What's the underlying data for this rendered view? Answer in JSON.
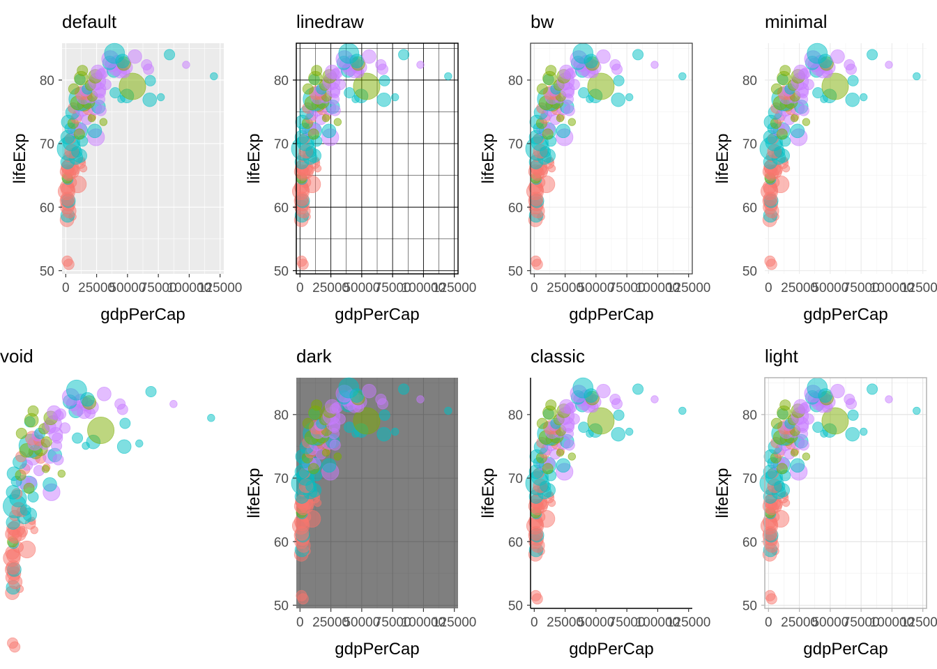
{
  "chart_data": {
    "type": "scatter",
    "layout": "2x4 grid of the same bubble scatter plot rendered with different ggplot2 themes",
    "xlabel": "gdpPerCap",
    "ylabel": "lifeExp",
    "xlim": [
      -3000,
      128000
    ],
    "ylim": [
      49.5,
      85.8
    ],
    "x_ticks": [
      0,
      25000,
      50000,
      75000,
      100000,
      125000
    ],
    "x_tick_labels": [
      "0",
      "25000",
      "50000",
      "75000",
      "100000",
      "125000"
    ],
    "y_ticks": [
      50,
      60,
      70,
      80
    ],
    "y_tick_labels": [
      "50",
      "60",
      "70",
      "80"
    ],
    "legend": "none",
    "alpha": 0.5,
    "group_colors": {
      "g1": "#F8766D",
      "g2": "#7CAE00",
      "g3": "#00BFC4",
      "g4": "#C77CFF"
    },
    "panels": [
      {
        "title": "default",
        "theme": "gray"
      },
      {
        "title": "linedraw",
        "theme": "linedraw"
      },
      {
        "title": "bw",
        "theme": "bw"
      },
      {
        "title": "minimal",
        "theme": "minimal"
      },
      {
        "title": "void",
        "theme": "void"
      },
      {
        "title": "dark",
        "theme": "dark"
      },
      {
        "title": "classic",
        "theme": "classic"
      },
      {
        "title": "light",
        "theme": "light"
      }
    ],
    "points": [
      {
        "x": 1200,
        "y": 51.5,
        "s": 2,
        "g": "g1"
      },
      {
        "x": 2500,
        "y": 51.0,
        "s": 2,
        "g": "g1"
      },
      {
        "x": 1000,
        "y": 58.0,
        "s": 3,
        "g": "g1"
      },
      {
        "x": 5500,
        "y": 58.5,
        "s": 1,
        "g": "g1"
      },
      {
        "x": 1500,
        "y": 58.7,
        "s": 3,
        "g": "g3"
      },
      {
        "x": 2800,
        "y": 59.4,
        "s": 3,
        "g": "g1"
      },
      {
        "x": 1200,
        "y": 60.0,
        "s": 3,
        "g": "g1"
      },
      {
        "x": 2000,
        "y": 60.5,
        "s": 3,
        "g": "g1"
      },
      {
        "x": 900,
        "y": 61.0,
        "s": 3,
        "g": "g1"
      },
      {
        "x": 2200,
        "y": 61.0,
        "s": 3,
        "g": "g3"
      },
      {
        "x": 1500,
        "y": 61.3,
        "s": 3,
        "g": "g1"
      },
      {
        "x": 700,
        "y": 62.5,
        "s": 4,
        "g": "g1"
      },
      {
        "x": 1800,
        "y": 62.8,
        "s": 3,
        "g": "g1"
      },
      {
        "x": 1100,
        "y": 63.2,
        "s": 3,
        "g": "g1"
      },
      {
        "x": 9800,
        "y": 63.6,
        "s": 4,
        "g": "g1"
      },
      {
        "x": 4500,
        "y": 63.9,
        "s": 2,
        "g": "g1"
      },
      {
        "x": 1700,
        "y": 64.4,
        "s": 2,
        "g": "g3"
      },
      {
        "x": 1200,
        "y": 64.6,
        "s": 2,
        "g": "g2"
      },
      {
        "x": 2500,
        "y": 65.3,
        "s": 3,
        "g": "g1"
      },
      {
        "x": 1000,
        "y": 65.6,
        "s": 3,
        "g": "g1"
      },
      {
        "x": 5200,
        "y": 65.6,
        "s": 3,
        "g": "g1"
      },
      {
        "x": 7000,
        "y": 65.9,
        "s": 2,
        "g": "g1"
      },
      {
        "x": 3500,
        "y": 66.3,
        "s": 4,
        "g": "g1"
      },
      {
        "x": 1800,
        "y": 66.3,
        "s": 3,
        "g": "g1"
      },
      {
        "x": 14200,
        "y": 66.1,
        "s": 1,
        "g": "g1"
      },
      {
        "x": 11800,
        "y": 66.9,
        "s": 2,
        "g": "g1"
      },
      {
        "x": 12800,
        "y": 67.3,
        "s": 1,
        "g": "g1"
      },
      {
        "x": 1500,
        "y": 67.1,
        "s": 3,
        "g": "g3"
      },
      {
        "x": 2500,
        "y": 68.0,
        "s": 2,
        "g": "g1"
      },
      {
        "x": 8200,
        "y": 67.8,
        "s": 3,
        "g": "g3"
      },
      {
        "x": 11500,
        "y": 68.1,
        "s": 3,
        "g": "g3"
      },
      {
        "x": 6800,
        "y": 68.5,
        "s": 2,
        "g": "g1"
      },
      {
        "x": 2500,
        "y": 69.2,
        "s": 6,
        "g": "g3"
      },
      {
        "x": 4800,
        "y": 68.8,
        "s": 3,
        "g": "g1"
      },
      {
        "x": 9000,
        "y": 68.7,
        "s": 2,
        "g": "g3"
      },
      {
        "x": 4500,
        "y": 70.2,
        "s": 4,
        "g": "g3"
      },
      {
        "x": 13500,
        "y": 70.4,
        "s": 2,
        "g": "g3"
      },
      {
        "x": 3800,
        "y": 70.8,
        "s": 2,
        "g": "g1"
      },
      {
        "x": 1500,
        "y": 71.0,
        "s": 3,
        "g": "g3"
      },
      {
        "x": 24500,
        "y": 71.0,
        "s": 4,
        "g": "g4"
      },
      {
        "x": 23500,
        "y": 72.0,
        "s": 3,
        "g": "g3"
      },
      {
        "x": 10800,
        "y": 72.0,
        "s": 4,
        "g": "g3"
      },
      {
        "x": 7500,
        "y": 72.3,
        "s": 3,
        "g": "g4"
      },
      {
        "x": 12500,
        "y": 72.3,
        "s": 2,
        "g": "g4"
      },
      {
        "x": 11000,
        "y": 71.5,
        "s": 2,
        "g": "g2"
      },
      {
        "x": 3500,
        "y": 72.4,
        "s": 2,
        "g": "g3"
      },
      {
        "x": 2000,
        "y": 73.4,
        "s": 3,
        "g": "g3"
      },
      {
        "x": 6000,
        "y": 73.2,
        "s": 2,
        "g": "g2"
      },
      {
        "x": 30500,
        "y": 73.4,
        "s": 1,
        "g": "g2"
      },
      {
        "x": 17000,
        "y": 73.8,
        "s": 2,
        "g": "g4"
      },
      {
        "x": 8500,
        "y": 74.0,
        "s": 2,
        "g": "g1"
      },
      {
        "x": 21500,
        "y": 74.2,
        "s": 1,
        "g": "g1"
      },
      {
        "x": 21000,
        "y": 74.0,
        "s": 1,
        "g": "g2"
      },
      {
        "x": 10000,
        "y": 74.5,
        "s": 2,
        "g": "g4"
      },
      {
        "x": 5500,
        "y": 74.9,
        "s": 3,
        "g": "g3"
      },
      {
        "x": 6200,
        "y": 75.6,
        "s": 2,
        "g": "g1"
      },
      {
        "x": 13500,
        "y": 75.4,
        "s": 3,
        "g": "g4"
      },
      {
        "x": 18000,
        "y": 75.4,
        "s": 2,
        "g": "g1"
      },
      {
        "x": 23500,
        "y": 75.6,
        "s": 3,
        "g": "g4"
      },
      {
        "x": 26500,
        "y": 75.8,
        "s": 3,
        "g": "g3"
      },
      {
        "x": 28500,
        "y": 75.2,
        "s": 2,
        "g": "g4"
      },
      {
        "x": 15000,
        "y": 76.2,
        "s": 3,
        "g": "g2"
      },
      {
        "x": 12000,
        "y": 77.0,
        "s": 6,
        "g": "g3"
      },
      {
        "x": 18000,
        "y": 76.6,
        "s": 3,
        "g": "g2"
      },
      {
        "x": 9500,
        "y": 76.4,
        "s": 3,
        "g": "g2"
      },
      {
        "x": 20500,
        "y": 77.2,
        "s": 2,
        "g": "g4"
      },
      {
        "x": 14500,
        "y": 77.3,
        "s": 3,
        "g": "g4"
      },
      {
        "x": 27500,
        "y": 77.0,
        "s": 2,
        "g": "g4"
      },
      {
        "x": 17000,
        "y": 77.7,
        "s": 2,
        "g": "g1"
      },
      {
        "x": 21500,
        "y": 77.5,
        "s": 2,
        "g": "g2"
      },
      {
        "x": 28000,
        "y": 78.0,
        "s": 2,
        "g": "g4"
      },
      {
        "x": 13000,
        "y": 78.0,
        "s": 3,
        "g": "g1"
      },
      {
        "x": 16000,
        "y": 78.3,
        "s": 2,
        "g": "g4"
      },
      {
        "x": 40000,
        "y": 78.0,
        "s": 2,
        "g": "g3"
      },
      {
        "x": 6500,
        "y": 78.6,
        "s": 2,
        "g": "g2"
      },
      {
        "x": 17500,
        "y": 78.6,
        "s": 2,
        "g": "g3"
      },
      {
        "x": 27000,
        "y": 78.5,
        "s": 3,
        "g": "g4"
      },
      {
        "x": 45000,
        "y": 77.0,
        "s": 1,
        "g": "g3"
      },
      {
        "x": 49500,
        "y": 77.5,
        "s": 3,
        "g": "g3"
      },
      {
        "x": 68000,
        "y": 76.9,
        "s": 3,
        "g": "g3"
      },
      {
        "x": 77000,
        "y": 77.3,
        "s": 1,
        "g": "g3"
      },
      {
        "x": 54000,
        "y": 79.0,
        "s": 7,
        "g": "g2"
      },
      {
        "x": 23000,
        "y": 79.4,
        "s": 3,
        "g": "g4"
      },
      {
        "x": 32500,
        "y": 79.3,
        "s": 2,
        "g": "g4"
      },
      {
        "x": 20000,
        "y": 79.2,
        "s": 2,
        "g": "g2"
      },
      {
        "x": 25500,
        "y": 79.8,
        "s": 4,
        "g": "g4"
      },
      {
        "x": 68500,
        "y": 79.9,
        "s": 2,
        "g": "g3"
      },
      {
        "x": 11500,
        "y": 80.1,
        "s": 2,
        "g": "g3"
      },
      {
        "x": 12500,
        "y": 80.3,
        "s": 3,
        "g": "g2"
      },
      {
        "x": 24000,
        "y": 80.6,
        "s": 3,
        "g": "g2"
      },
      {
        "x": 120000,
        "y": 80.6,
        "s": 1,
        "g": "g3"
      },
      {
        "x": 28500,
        "y": 80.9,
        "s": 2,
        "g": "g4"
      },
      {
        "x": 30000,
        "y": 81.1,
        "s": 2,
        "g": "g4"
      },
      {
        "x": 26000,
        "y": 81.3,
        "s": 3,
        "g": "g4"
      },
      {
        "x": 39000,
        "y": 81.5,
        "s": 3,
        "g": "g3"
      },
      {
        "x": 44000,
        "y": 81.4,
        "s": 3,
        "g": "g4"
      },
      {
        "x": 47500,
        "y": 81.2,
        "s": 2,
        "g": "g4"
      },
      {
        "x": 13500,
        "y": 81.5,
        "s": 2,
        "g": "g2"
      },
      {
        "x": 40500,
        "y": 81.8,
        "s": 3,
        "g": "g4"
      },
      {
        "x": 48500,
        "y": 82.0,
        "s": 3,
        "g": "g4"
      },
      {
        "x": 37500,
        "y": 82.4,
        "s": 3,
        "g": "g4"
      },
      {
        "x": 45000,
        "y": 82.4,
        "s": 3,
        "g": "g4"
      },
      {
        "x": 67000,
        "y": 81.7,
        "s": 2,
        "g": "g4"
      },
      {
        "x": 65500,
        "y": 82.4,
        "s": 2,
        "g": "g4"
      },
      {
        "x": 97500,
        "y": 82.4,
        "s": 1,
        "g": "g4"
      },
      {
        "x": 42000,
        "y": 82.8,
        "s": 3,
        "g": "g4"
      },
      {
        "x": 47000,
        "y": 82.6,
        "s": 3,
        "g": "g2"
      },
      {
        "x": 35500,
        "y": 82.7,
        "s": 3,
        "g": "g3"
      },
      {
        "x": 36000,
        "y": 83.3,
        "s": 4,
        "g": "g4"
      },
      {
        "x": 46000,
        "y": 83.0,
        "s": 3,
        "g": "g3"
      },
      {
        "x": 56000,
        "y": 83.7,
        "s": 3,
        "g": "g4"
      },
      {
        "x": 39500,
        "y": 84.2,
        "s": 5,
        "g": "g3"
      },
      {
        "x": 84000,
        "y": 84.0,
        "s": 2,
        "g": "g3"
      }
    ]
  }
}
